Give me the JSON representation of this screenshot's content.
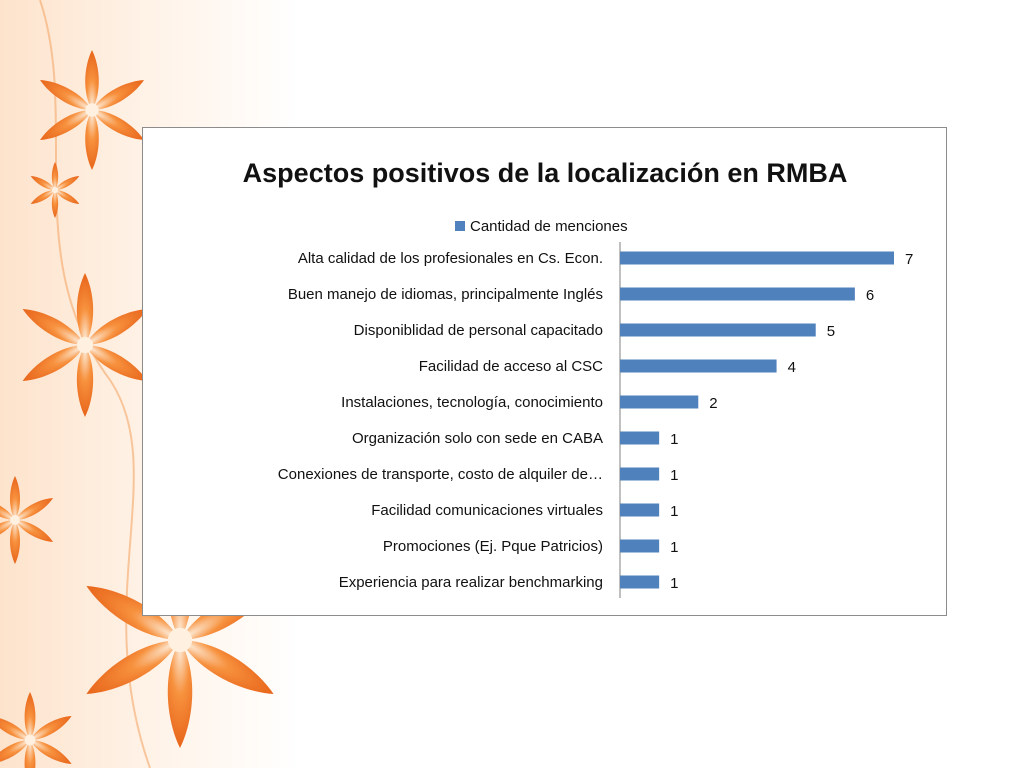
{
  "colors": {
    "bar": "#4f81bd",
    "frame": "#8c8c8c",
    "flower_light": "#fbc69a",
    "flower_mid": "#f7923f",
    "flower_dark": "#e8651a"
  },
  "decoration": {
    "icon": "orange-flowers"
  },
  "chart_data": {
    "type": "bar",
    "orientation": "horizontal",
    "title": "Aspectos positivos de la localización en RMBA",
    "legend": {
      "position": "top",
      "entries": [
        "Cantidad de menciones"
      ]
    },
    "categories": [
      "Alta calidad de los profesionales en Cs. Econ.",
      "Buen manejo de idiomas, principalmente Inglés",
      "Disponiblidad de personal capacitado",
      "Facilidad de acceso al CSC",
      "Instalaciones, tecnología, conocimiento",
      "Organización solo con sede en CABA",
      "Conexiones de transporte, costo de alquiler de…",
      "Facilidad comunicaciones virtuales",
      "Promociones (Ej. Pque Patricios)",
      "Experiencia para realizar benchmarking"
    ],
    "series": [
      {
        "name": "Cantidad de menciones",
        "values": [
          7,
          6,
          5,
          4,
          2,
          1,
          1,
          1,
          1,
          1
        ]
      }
    ],
    "data_labels": true,
    "xlim": [
      0,
      7
    ],
    "grid": false
  }
}
